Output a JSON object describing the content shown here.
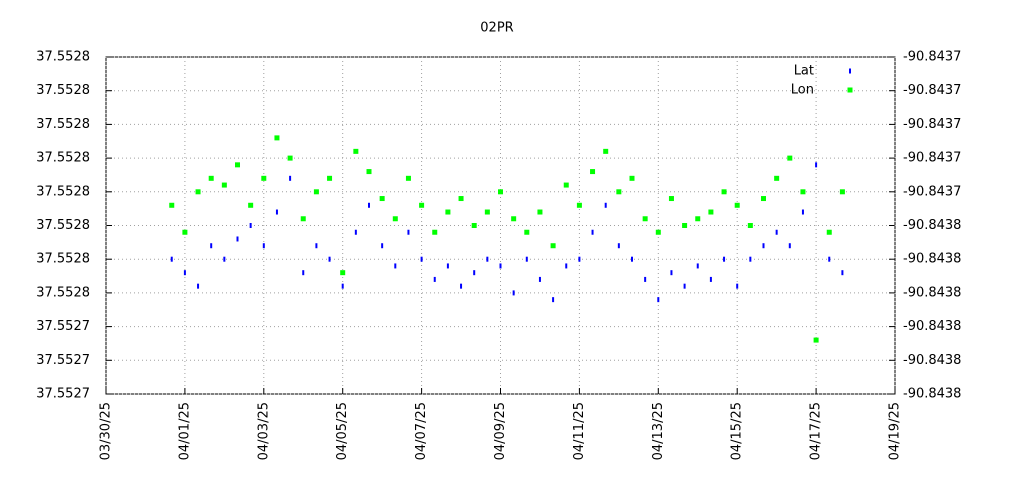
{
  "chart_data": {
    "type": "scatter",
    "title": "02PR",
    "legend": "top-right",
    "grid": true,
    "xlim": [
      "03/30/25",
      "04/19/25"
    ],
    "xticks": [
      "03/30/25",
      "04/01/25",
      "04/03/25",
      "04/05/25",
      "04/07/25",
      "04/09/25",
      "04/11/25",
      "04/13/25",
      "04/15/25",
      "04/17/25",
      "04/19/25"
    ],
    "ylim": [
      37.552738,
      37.552788
    ],
    "yticks": [
      {
        "value": 37.552738,
        "label": "37.5527"
      },
      {
        "value": 37.552743,
        "label": "37.5527"
      },
      {
        "value": 37.552748,
        "label": "37.5527"
      },
      {
        "value": 37.552753,
        "label": "37.5528"
      },
      {
        "value": 37.552758,
        "label": "37.5528"
      },
      {
        "value": 37.552763,
        "label": "37.5528"
      },
      {
        "value": 37.552768,
        "label": "37.5528"
      },
      {
        "value": 37.552773,
        "label": "37.5528"
      },
      {
        "value": 37.552778,
        "label": "37.5528"
      },
      {
        "value": 37.552783,
        "label": "37.5528"
      },
      {
        "value": 37.552788,
        "label": "37.5528"
      }
    ],
    "y2lim": [
      -90.843776,
      -90.843726
    ],
    "y2ticks": [
      {
        "value": -90.843776,
        "label": "-90.8438"
      },
      {
        "value": -90.843771,
        "label": "-90.8438"
      },
      {
        "value": -90.843766,
        "label": "-90.8438"
      },
      {
        "value": -90.843761,
        "label": "-90.8438"
      },
      {
        "value": -90.843756,
        "label": "-90.8438"
      },
      {
        "value": -90.843751,
        "label": "-90.8438"
      },
      {
        "value": -90.843746,
        "label": "-90.8437"
      },
      {
        "value": -90.843741,
        "label": "-90.8437"
      },
      {
        "value": -90.843736,
        "label": "-90.8437"
      },
      {
        "value": -90.843731,
        "label": "-90.8437"
      },
      {
        "value": -90.843726,
        "label": "-90.8437"
      }
    ],
    "x": [
      "03/31/25 16:00",
      "04/01/25 00:00",
      "04/01/25 08:00",
      "04/01/25 16:00",
      "04/02/25 00:00",
      "04/02/25 08:00",
      "04/02/25 16:00",
      "04/03/25 00:00",
      "04/03/25 08:00",
      "04/03/25 16:00",
      "04/04/25 00:00",
      "04/04/25 08:00",
      "04/04/25 16:00",
      "04/05/25 00:00",
      "04/05/25 08:00",
      "04/05/25 16:00",
      "04/06/25 00:00",
      "04/06/25 08:00",
      "04/06/25 16:00",
      "04/07/25 00:00",
      "04/07/25 08:00",
      "04/07/25 16:00",
      "04/08/25 00:00",
      "04/08/25 08:00",
      "04/08/25 16:00",
      "04/09/25 00:00",
      "04/09/25 08:00",
      "04/09/25 16:00",
      "04/10/25 00:00",
      "04/10/25 08:00",
      "04/10/25 16:00",
      "04/11/25 00:00",
      "04/11/25 08:00",
      "04/11/25 16:00",
      "04/12/25 00:00",
      "04/12/25 08:00",
      "04/12/25 16:00",
      "04/13/25 00:00",
      "04/13/25 08:00",
      "04/13/25 16:00",
      "04/14/25 00:00",
      "04/14/25 08:00",
      "04/14/25 16:00",
      "04/15/25 00:00",
      "04/15/25 08:00",
      "04/15/25 16:00",
      "04/16/25 00:00",
      "04/16/25 08:00",
      "04/16/25 16:00",
      "04/17/25 00:00",
      "04/17/25 08:00",
      "04/17/25 16:00"
    ],
    "series": [
      {
        "name": "Lat",
        "color": "#0000ff",
        "values": [
          37.552758,
          37.552756,
          37.552754,
          37.55276,
          37.552758,
          37.552761,
          37.552763,
          37.55276,
          37.552765,
          37.55277,
          37.552756,
          37.55276,
          37.552758,
          37.552754,
          37.552762,
          37.552766,
          37.55276,
          37.552757,
          37.552762,
          37.552758,
          37.552755,
          37.552757,
          37.552754,
          37.552756,
          37.552758,
          37.552757,
          37.552753,
          37.552758,
          37.552755,
          37.552752,
          37.552757,
          37.552758,
          37.552762,
          37.552766,
          37.55276,
          37.552758,
          37.552755,
          37.552752,
          37.552756,
          37.552754,
          37.552757,
          37.552755,
          37.552758,
          37.552754,
          37.552758,
          37.55276,
          37.552762,
          37.55276,
          37.552765,
          37.552772,
          37.552758,
          37.552756
        ]
      },
      {
        "name": "Lon",
        "color": "#00ff00",
        "axis": "y2",
        "values": [
          -90.843748,
          -90.843752,
          -90.843746,
          -90.843744,
          -90.843745,
          -90.843742,
          -90.843748,
          -90.843744,
          -90.843738,
          -90.843741,
          -90.84375,
          -90.843746,
          -90.843744,
          -90.843758,
          -90.84374,
          -90.843743,
          -90.843747,
          -90.84375,
          -90.843744,
          -90.843748,
          -90.843752,
          -90.843749,
          -90.843747,
          -90.843751,
          -90.843749,
          -90.843746,
          -90.84375,
          -90.843752,
          -90.843749,
          -90.843754,
          -90.843745,
          -90.843748,
          -90.843743,
          -90.84374,
          -90.843746,
          -90.843744,
          -90.84375,
          -90.843752,
          -90.843747,
          -90.843751,
          -90.84375,
          -90.843749,
          -90.843746,
          -90.843748,
          -90.843751,
          -90.843747,
          -90.843744,
          -90.843741,
          -90.843746,
          -90.843768,
          -90.843752,
          -90.843746
        ]
      }
    ]
  }
}
